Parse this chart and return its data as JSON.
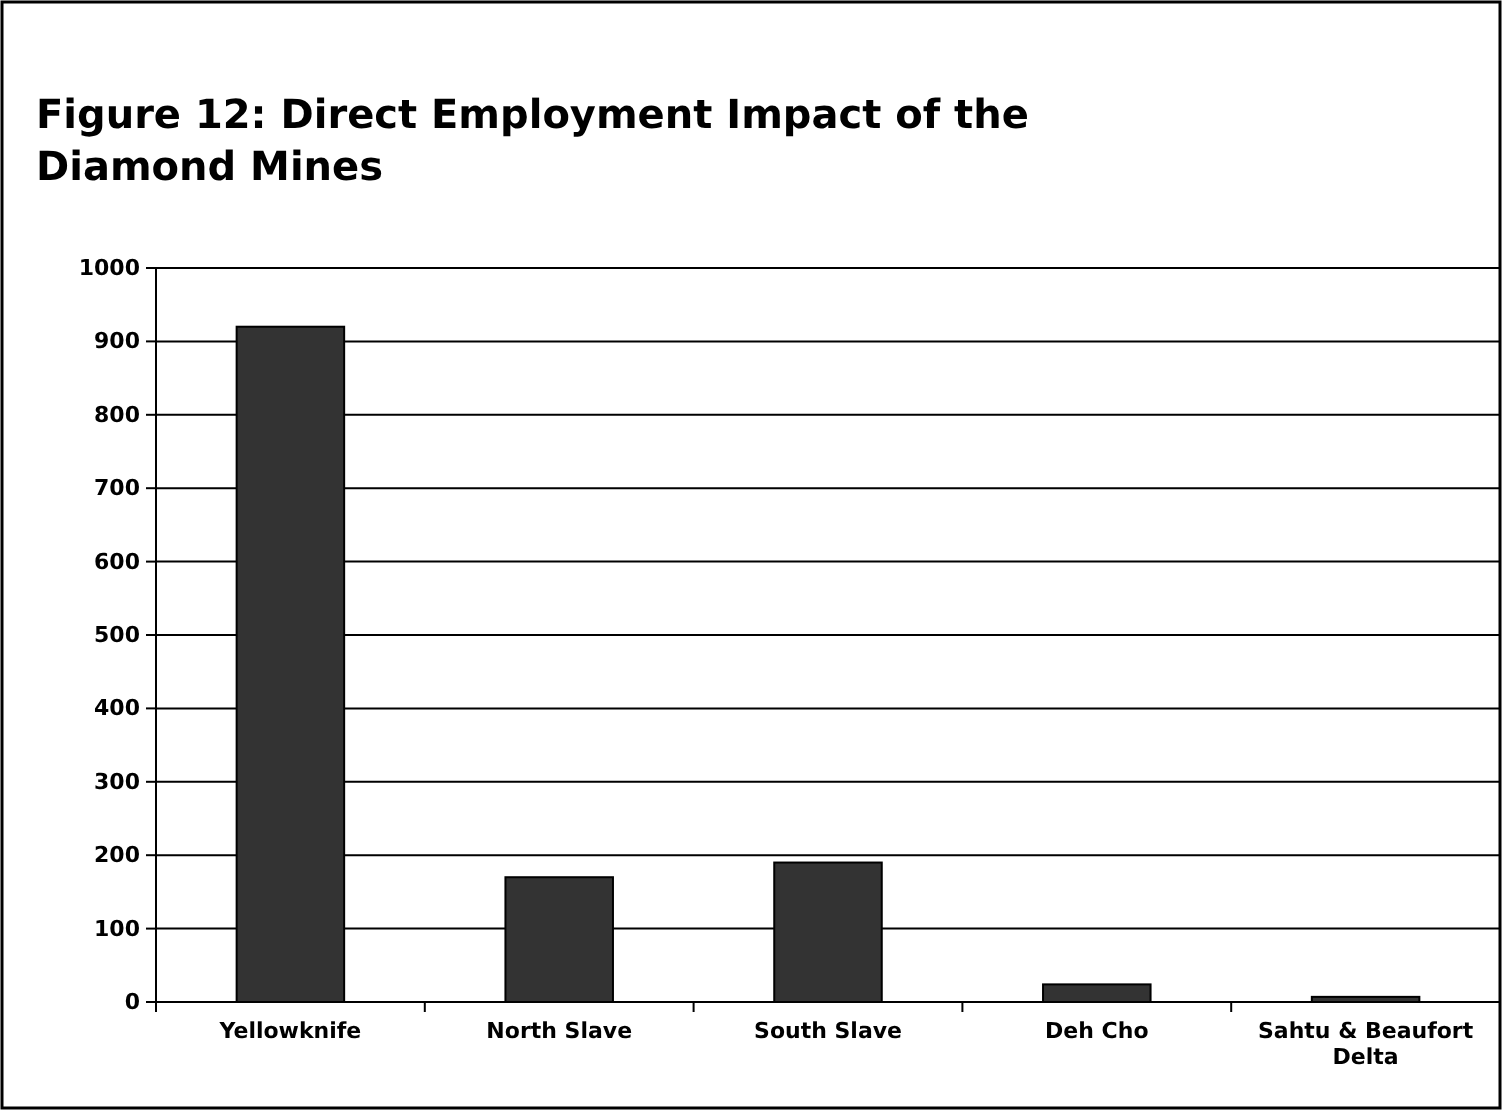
{
  "chart_data": {
    "type": "bar",
    "title": "Figure 12: Direct Employment Impact of the Diamond Mines",
    "categories": [
      "Yellowknife",
      "North Slave",
      "South Slave",
      "Deh Cho",
      "Sahtu & Beaufort Delta"
    ],
    "values": [
      920,
      170,
      190,
      24,
      7
    ],
    "color": "#333333",
    "ylim": [
      0,
      1000
    ],
    "yticks": [
      0,
      100,
      200,
      300,
      400,
      500,
      600,
      700,
      800,
      900,
      1000
    ],
    "grid": "y"
  }
}
